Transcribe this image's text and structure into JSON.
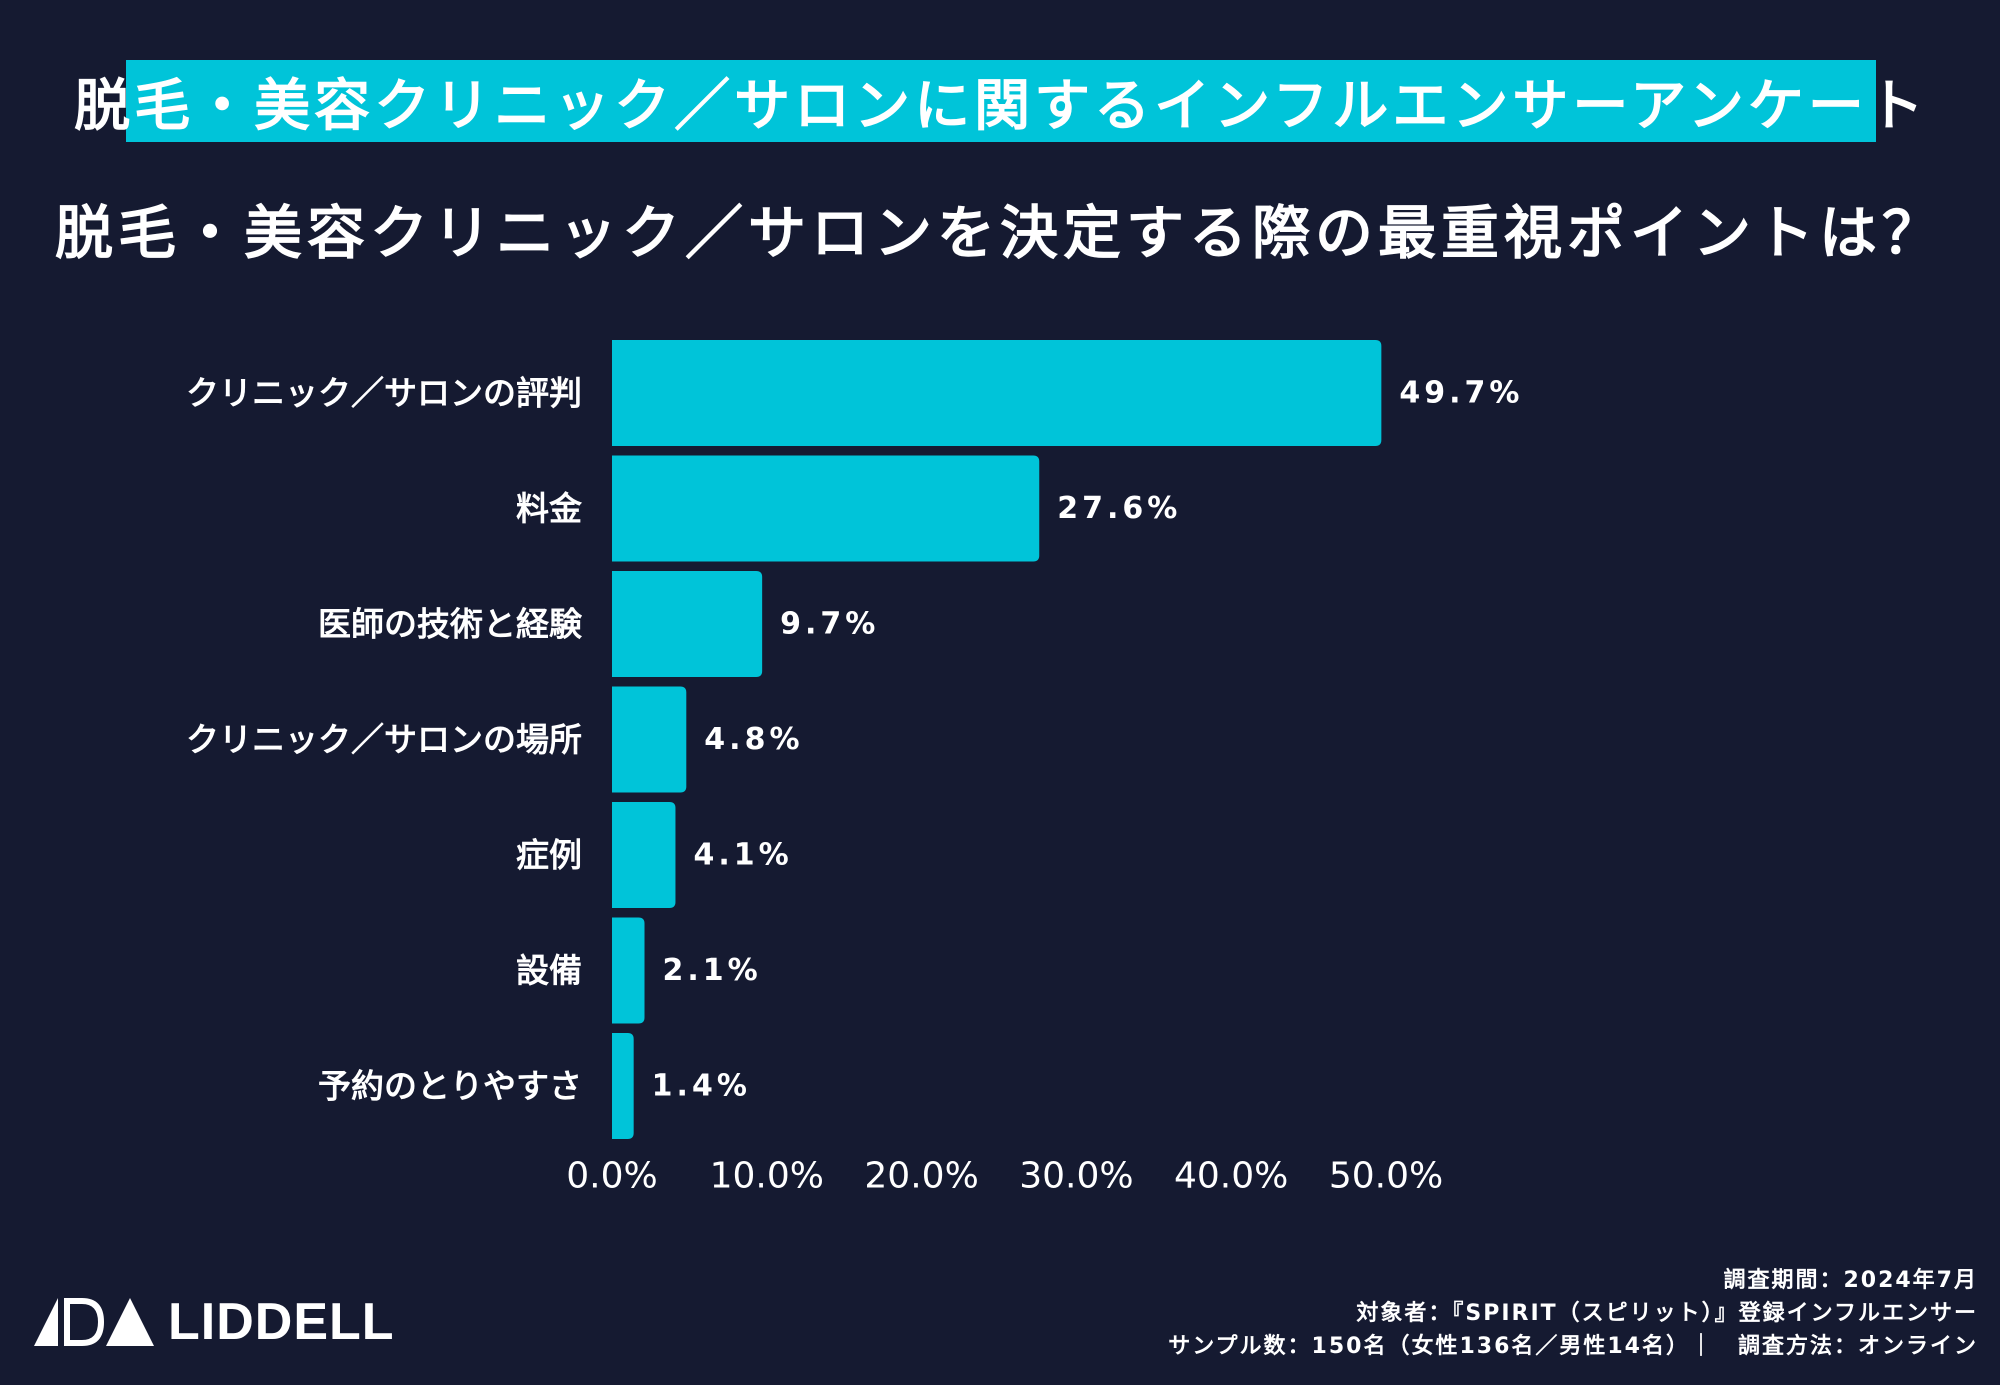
{
  "header": {
    "banner_title": "脱毛・美容クリニック／サロンに関するインフルエンサーアンケート",
    "question": "脱毛・美容クリニック／サロンを決定する際の最重視ポイントは？"
  },
  "colors": {
    "background": "#151a31",
    "accent": "#00c4d9",
    "text": "#ffffff"
  },
  "chart_data": {
    "type": "bar",
    "orientation": "horizontal",
    "categories": [
      "クリニック／サロンの評判",
      "料金",
      "医師の技術と経験",
      "クリニック／サロンの場所",
      "症例",
      "設備",
      "予約のとりやすさ"
    ],
    "values": [
      49.7,
      27.6,
      9.7,
      4.8,
      4.1,
      2.1,
      1.4
    ],
    "value_labels": [
      "49.7%",
      "27.6%",
      "9.7%",
      "4.8%",
      "4.1%",
      "2.1%",
      "1.4%"
    ],
    "x_ticks": [
      0,
      10,
      20,
      30,
      40,
      50
    ],
    "x_tick_labels": [
      "0.0%",
      "10.0%",
      "20.0%",
      "30.0%",
      "40.0%",
      "50.0%"
    ],
    "xlim": [
      0,
      50
    ],
    "grid": false,
    "title": "脱毛・美容クリニック／サロンを決定する際の最重視ポイントは？"
  },
  "logo": {
    "text": "LIDDELL",
    "icon": "liddell-logo-icon"
  },
  "footer": {
    "period": "調査期間：2024年7月",
    "target": "対象者：『SPIRIT（スピリット）』登録インフルエンサー",
    "sample": "サンプル数：150名（女性136名／男性14名）｜　調査方法：オンライン"
  }
}
